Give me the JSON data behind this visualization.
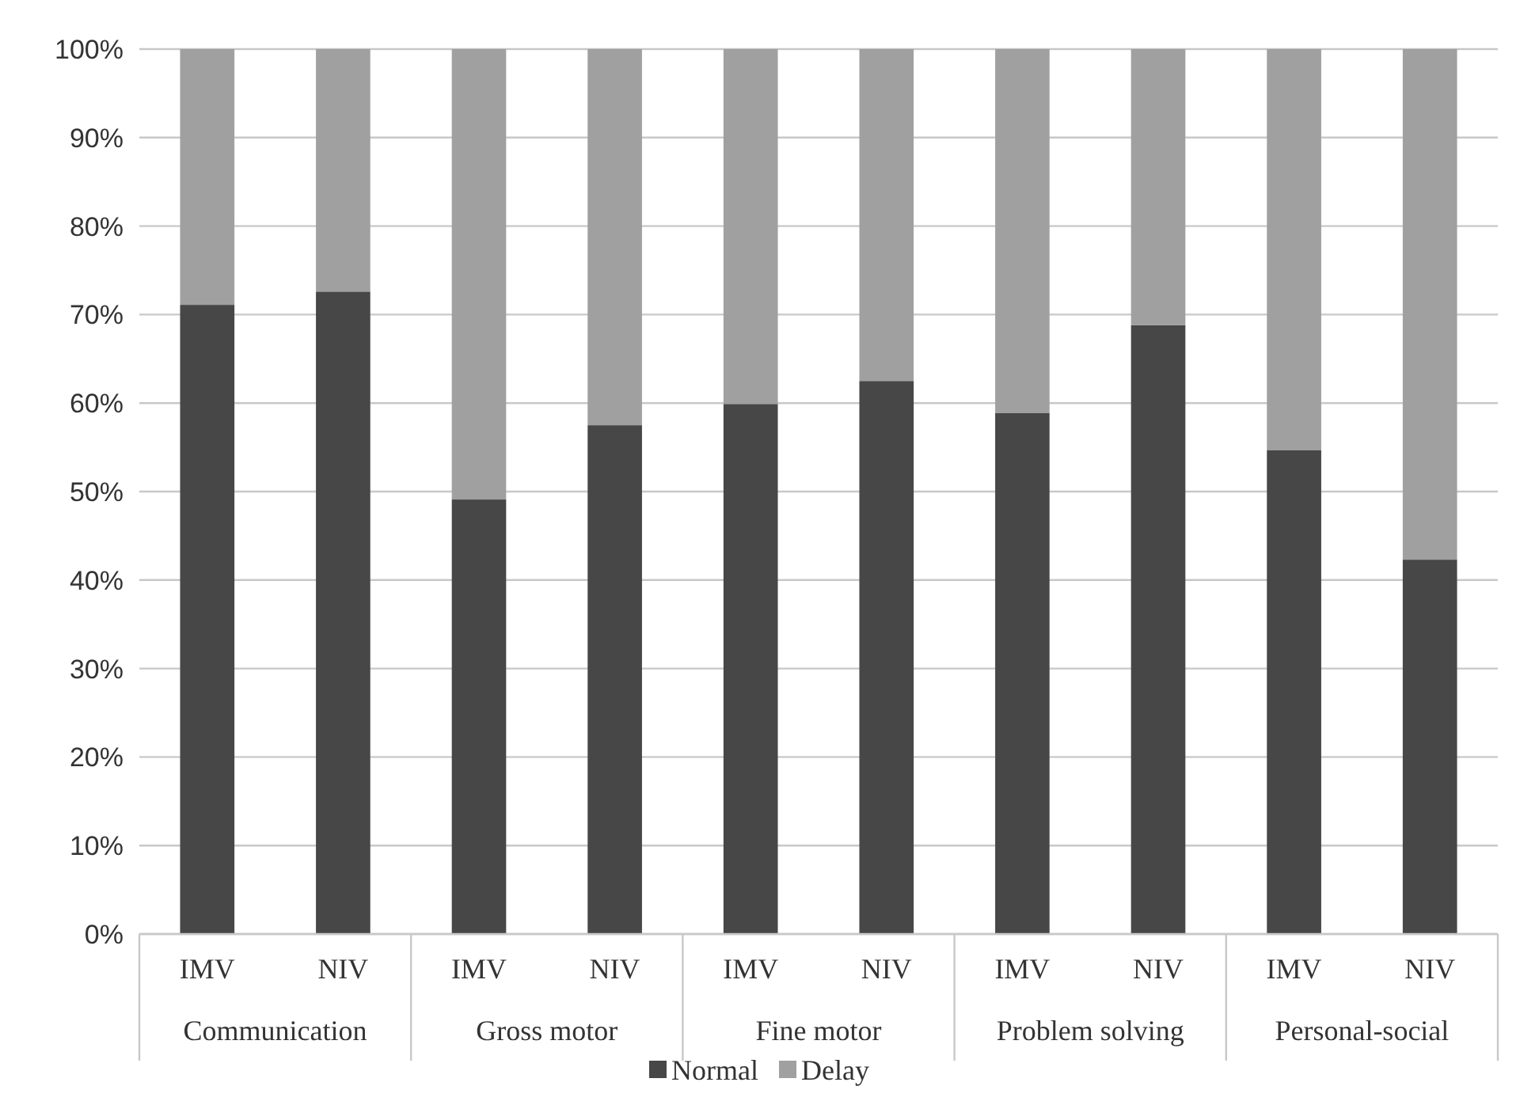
{
  "chart_data": {
    "type": "bar",
    "stacked": true,
    "categories": [
      "IMV",
      "NIV",
      "IMV",
      "NIV",
      "IMV",
      "NIV",
      "IMV",
      "NIV",
      "IMV",
      "NIV"
    ],
    "series": [
      {
        "name": "Normal",
        "color": "#474747",
        "values": [
          71.1,
          72.6,
          49.1,
          57.5,
          59.9,
          62.5,
          58.9,
          68.8,
          54.7,
          42.3
        ]
      },
      {
        "name": "Delay",
        "color": "#a0a0a0",
        "values": [
          28.9,
          27.4,
          50.9,
          42.5,
          40.1,
          37.5,
          41.1,
          31.2,
          45.3,
          57.7
        ]
      }
    ],
    "annotations": [
      "Communication",
      "Gross motor",
      "Fine motor",
      "Problem solving",
      "Personal-social"
    ],
    "ylim": [
      0,
      100
    ],
    "yticks": [
      {
        "value": 0,
        "label": "0%"
      },
      {
        "value": 10,
        "label": "10%"
      },
      {
        "value": 20,
        "label": "20%"
      },
      {
        "value": 30,
        "label": "30%"
      },
      {
        "value": 40,
        "label": "40%"
      },
      {
        "value": 50,
        "label": "50%"
      },
      {
        "value": 60,
        "label": "60%"
      },
      {
        "value": 70,
        "label": "70%"
      },
      {
        "value": 80,
        "label": "80%"
      },
      {
        "value": 90,
        "label": "90%"
      },
      {
        "value": 100,
        "label": "100%"
      }
    ],
    "grid": true,
    "legend": "bottom"
  }
}
